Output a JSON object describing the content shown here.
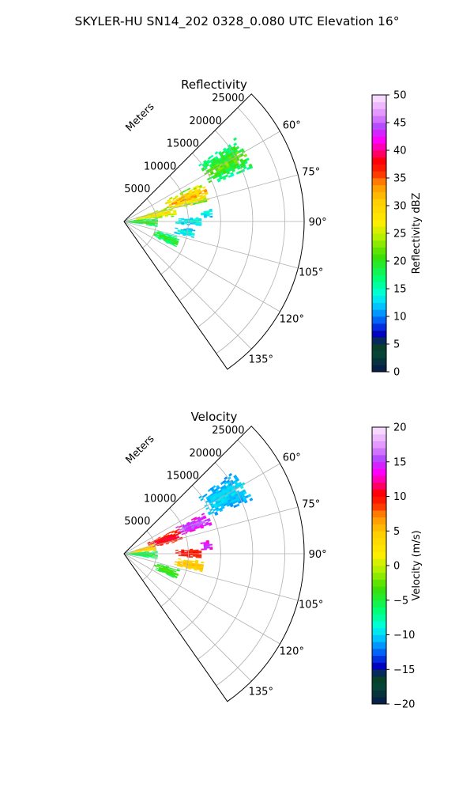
{
  "figure": {
    "title": "SKYLER-HU  SN14_202  0328_0.080 UTC Elevation 16°"
  },
  "chart_data": [
    {
      "type": "heatmap",
      "subtype": "polar-sector",
      "title": "Reflectivity",
      "radial_label": "Meters",
      "radial_ticks": [
        5000,
        10000,
        15000,
        20000,
        25000
      ],
      "radial_tick_labels": [
        "5000",
        "10000",
        "15000",
        "20000",
        "25000"
      ],
      "rlim": [
        0,
        28000
      ],
      "azimuth_range_deg": [
        45,
        145
      ],
      "angle_ticks": [
        60,
        75,
        90,
        105,
        120,
        135
      ],
      "angle_tick_labels": [
        "60°",
        "75°",
        "90°",
        "105°",
        "120°",
        "135°"
      ],
      "grid": true,
      "colorbar": {
        "label": "Reflectivity dBZ",
        "range": [
          0,
          50
        ],
        "ticks": [
          0,
          5,
          10,
          15,
          20,
          25,
          30,
          35,
          40,
          45,
          50
        ],
        "tick_labels": [
          "0",
          "5",
          "10",
          "15",
          "20",
          "25",
          "30",
          "35",
          "40",
          "45",
          "50"
        ]
      },
      "echo_regions": [
        {
          "az_deg": [
            53,
            67
          ],
          "r_m": [
            14500,
            21500
          ],
          "value_range": [
            14,
            24
          ]
        },
        {
          "az_deg": [
            63,
            76
          ],
          "r_m": [
            7000,
            13500
          ],
          "value_range": [
            20,
            36
          ]
        },
        {
          "az_deg": [
            72,
            84
          ],
          "r_m": [
            1500,
            8000
          ],
          "value_range": [
            20,
            32
          ]
        },
        {
          "az_deg": [
            84,
            99
          ],
          "r_m": [
            300,
            5000
          ],
          "value_range": [
            14,
            24
          ]
        },
        {
          "az_deg": [
            81,
            87
          ],
          "r_m": [
            12000,
            13500
          ],
          "value_range": [
            10,
            16
          ]
        },
        {
          "az_deg": [
            86,
            93
          ],
          "r_m": [
            8000,
            12000
          ],
          "value_range": [
            10,
            16
          ]
        },
        {
          "az_deg": [
            96,
            103
          ],
          "r_m": [
            8000,
            11000
          ],
          "value_range": [
            10,
            16
          ]
        },
        {
          "az_deg": [
            106,
            116
          ],
          "r_m": [
            5000,
            9000
          ],
          "value_range": [
            14,
            22
          ]
        }
      ]
    },
    {
      "type": "heatmap",
      "subtype": "polar-sector",
      "title": "Velocity",
      "radial_label": "Meters",
      "radial_ticks": [
        5000,
        10000,
        15000,
        20000,
        25000
      ],
      "radial_tick_labels": [
        "5000",
        "10000",
        "15000",
        "20000",
        "25000"
      ],
      "rlim": [
        0,
        28000
      ],
      "azimuth_range_deg": [
        45,
        145
      ],
      "angle_ticks": [
        60,
        75,
        90,
        105,
        120,
        135
      ],
      "angle_tick_labels": [
        "60°",
        "75°",
        "90°",
        "105°",
        "120°",
        "135°"
      ],
      "grid": true,
      "colorbar": {
        "label": "Velocity (m/s)",
        "range": [
          -20,
          20
        ],
        "ticks": [
          -20,
          -15,
          -10,
          -5,
          0,
          5,
          10,
          15,
          20
        ],
        "tick_labels": [
          "−20",
          "−15",
          "−10",
          "−5",
          "0",
          "5",
          "10",
          "15",
          "20"
        ]
      },
      "echo_regions": [
        {
          "az_deg": [
            53,
            67
          ],
          "r_m": [
            14500,
            21500
          ],
          "value_range": [
            -12,
            -9
          ]
        },
        {
          "az_deg": [
            63,
            72
          ],
          "r_m": [
            9000,
            14000
          ],
          "value_range": [
            12,
            17
          ]
        },
        {
          "az_deg": [
            65,
            77
          ],
          "r_m": [
            4000,
            9000
          ],
          "value_range": [
            8,
            12
          ]
        },
        {
          "az_deg": [
            72,
            84
          ],
          "r_m": [
            1000,
            5000
          ],
          "value_range": [
            2,
            6
          ]
        },
        {
          "az_deg": [
            84,
            99
          ],
          "r_m": [
            300,
            5000
          ],
          "value_range": [
            -8,
            -3
          ]
        },
        {
          "az_deg": [
            81,
            87
          ],
          "r_m": [
            12000,
            13500
          ],
          "value_range": [
            12,
            16
          ]
        },
        {
          "az_deg": [
            86,
            93
          ],
          "r_m": [
            8000,
            12000
          ],
          "value_range": [
            8,
            11
          ]
        },
        {
          "az_deg": [
            95,
            103
          ],
          "r_m": [
            8000,
            12500
          ],
          "value_range": [
            3,
            6
          ]
        },
        {
          "az_deg": [
            106,
            116
          ],
          "r_m": [
            5000,
            9000
          ],
          "value_range": [
            -6,
            -2
          ]
        }
      ]
    }
  ]
}
